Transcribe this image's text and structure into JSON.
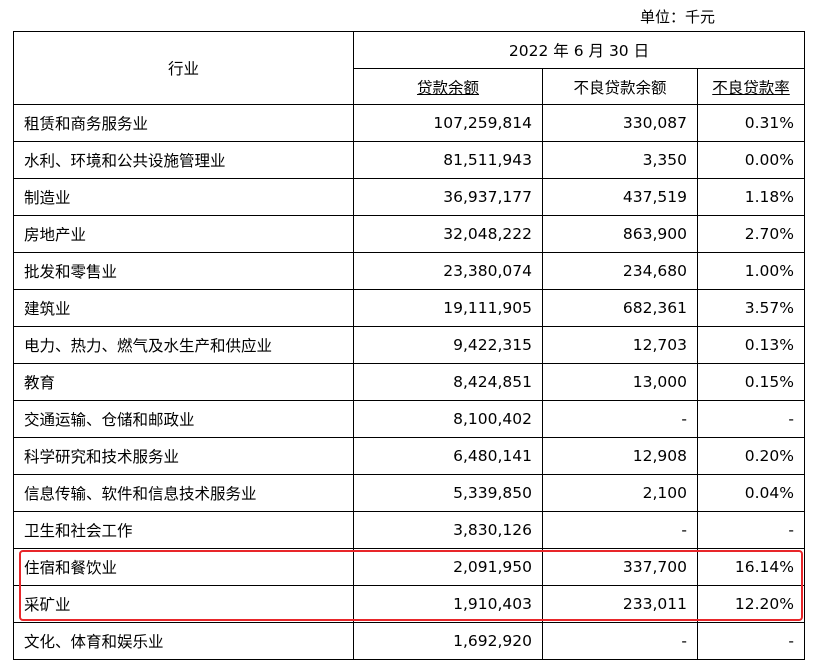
{
  "unit_note": "单位：千元",
  "header": {
    "industry_label": "行业",
    "period_label": "2022 年 6 月 30 日",
    "loan_balance_label": "贷款余额",
    "npl_balance_label": "不良贷款余额",
    "npl_ratio_label": "不良贷款率"
  },
  "rows": [
    {
      "industry": "租赁和商务服务业",
      "loan_balance": "107,259,814",
      "npl_balance": "330,087",
      "npl_ratio": "0.31%"
    },
    {
      "industry": "水利、环境和公共设施管理业",
      "loan_balance": "81,511,943",
      "npl_balance": "3,350",
      "npl_ratio": "0.00%"
    },
    {
      "industry": "制造业",
      "loan_balance": "36,937,177",
      "npl_balance": "437,519",
      "npl_ratio": "1.18%"
    },
    {
      "industry": "房地产业",
      "loan_balance": "32,048,222",
      "npl_balance": "863,900",
      "npl_ratio": "2.70%"
    },
    {
      "industry": "批发和零售业",
      "loan_balance": "23,380,074",
      "npl_balance": "234,680",
      "npl_ratio": "1.00%"
    },
    {
      "industry": "建筑业",
      "loan_balance": "19,111,905",
      "npl_balance": "682,361",
      "npl_ratio": "3.57%"
    },
    {
      "industry": "电力、热力、燃气及水生产和供应业",
      "loan_balance": "9,422,315",
      "npl_balance": "12,703",
      "npl_ratio": "0.13%"
    },
    {
      "industry": "教育",
      "loan_balance": "8,424,851",
      "npl_balance": "13,000",
      "npl_ratio": "0.15%"
    },
    {
      "industry": "交通运输、仓储和邮政业",
      "loan_balance": "8,100,402",
      "npl_balance": "-",
      "npl_ratio": "-"
    },
    {
      "industry": "科学研究和技术服务业",
      "loan_balance": "6,480,141",
      "npl_balance": "12,908",
      "npl_ratio": "0.20%"
    },
    {
      "industry": "信息传输、软件和信息技术服务业",
      "loan_balance": "5,339,850",
      "npl_balance": "2,100",
      "npl_ratio": "0.04%"
    },
    {
      "industry": "卫生和社会工作",
      "loan_balance": "3,830,126",
      "npl_balance": "-",
      "npl_ratio": "-"
    },
    {
      "industry": "住宿和餐饮业",
      "loan_balance": "2,091,950",
      "npl_balance": "337,700",
      "npl_ratio": "16.14%"
    },
    {
      "industry": "采矿业",
      "loan_balance": "1,910,403",
      "npl_balance": "233,011",
      "npl_ratio": "12.20%"
    },
    {
      "industry": "文化、体育和娱乐业",
      "loan_balance": "1,692,920",
      "npl_balance": "-",
      "npl_ratio": "-"
    }
  ],
  "highlight_color": "#e8262a"
}
